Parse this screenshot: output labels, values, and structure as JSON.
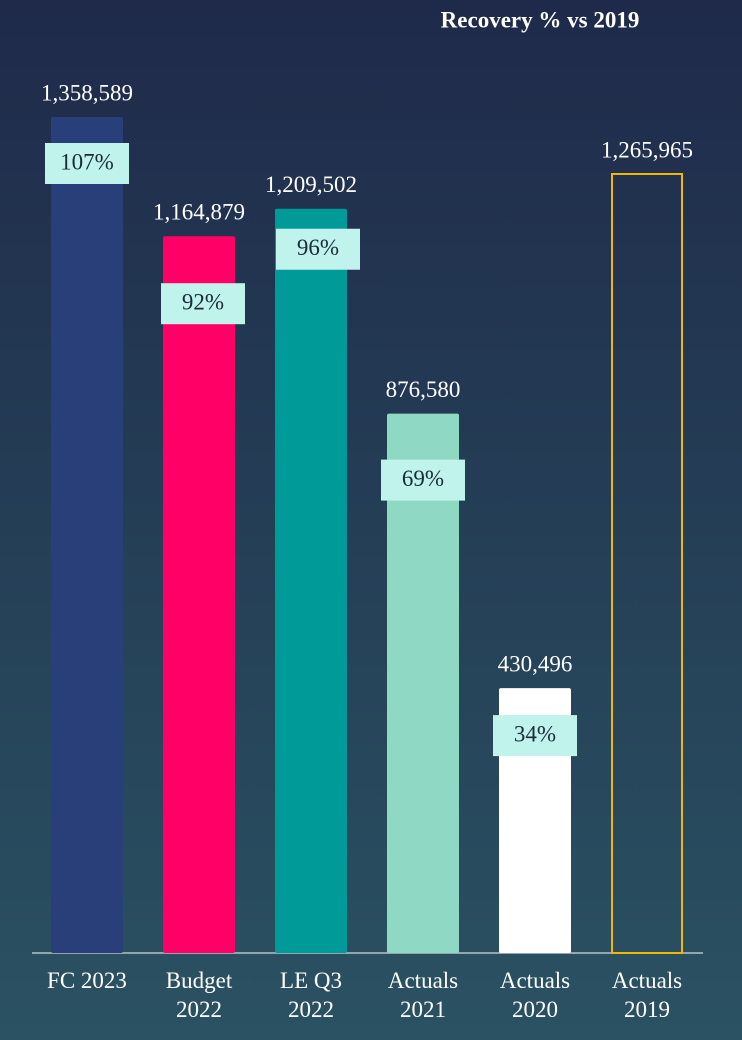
{
  "chart_data": {
    "type": "bar",
    "title": "Recovery % vs 2019",
    "categories": [
      "FC 2023",
      "Budget 2022",
      "LE Q3 2022",
      "Actuals 2021",
      "Actuals 2020",
      "Actuals 2019"
    ],
    "values": [
      1358589,
      1164879,
      1209502,
      876580,
      430496,
      1265965
    ],
    "value_labels": [
      "1,358,589",
      "1,164,879",
      "1,209,502",
      "876,580",
      "430,496",
      "1,265,965"
    ],
    "colors": [
      "#283f7a",
      "#ff0066",
      "#009a98",
      "#8fd8c4",
      "#ffffff",
      "#f2b800"
    ],
    "outline_only": [
      false,
      false,
      false,
      false,
      false,
      true
    ],
    "recovery": {
      "values": [
        107,
        92,
        96,
        69,
        34,
        null
      ],
      "value_labels": [
        "107%",
        "92%",
        "96%",
        "69%",
        "34%",
        null
      ]
    }
  }
}
